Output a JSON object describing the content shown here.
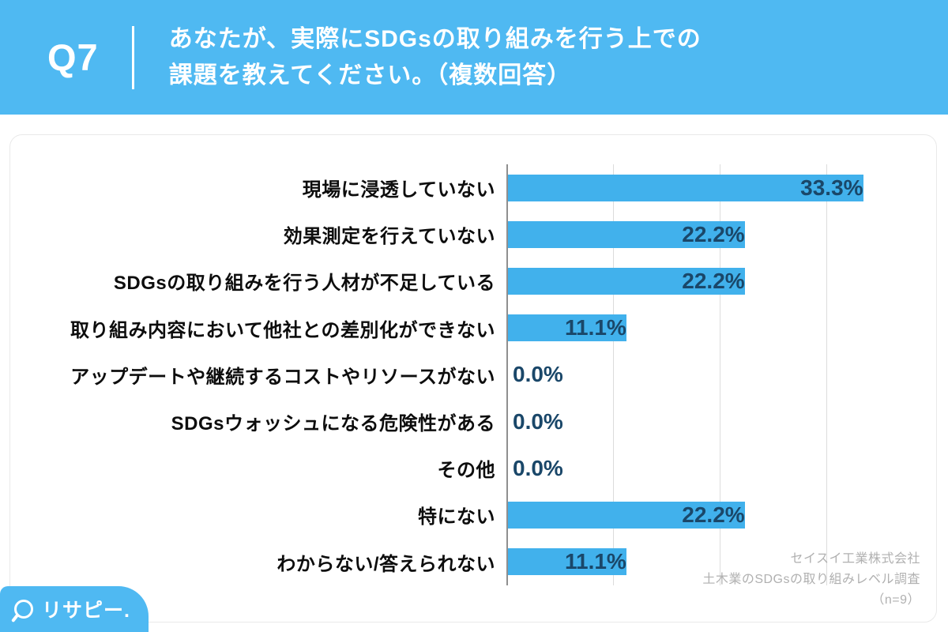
{
  "header": {
    "q_label": "Q7",
    "title_line1": "あなたが、実際にSDGsの取り組みを行う上での",
    "title_line2": "課題を教えてください。（複数回答）"
  },
  "chart_data": {
    "type": "bar",
    "orientation": "horizontal",
    "title": "あなたが、実際にSDGsの取り組みを行う上での課題を教えてください。（複数回答）",
    "categories": [
      "現場に浸透していない",
      "効果測定を行えていない",
      "SDGsの取り組みを行う人材が不足している",
      "取り組み内容において他社との差別化ができない",
      "アップデートや継続するコストやリソースがない",
      "SDGsウォッシュになる危険性がある",
      "その他",
      "特にない",
      "わからない/答えられない"
    ],
    "values": [
      33.3,
      22.2,
      22.2,
      11.1,
      0.0,
      0.0,
      0.0,
      22.2,
      11.1
    ],
    "value_labels": [
      "33.3%",
      "22.2%",
      "22.2%",
      "11.1%",
      "0.0%",
      "0.0%",
      "0.0%",
      "22.2%",
      "11.1%"
    ],
    "xlim": [
      0,
      40
    ],
    "grid_interval": 10,
    "grid_on": true,
    "legend": "none",
    "bar_color": "#41B1EC",
    "value_label_color": "#1A4769",
    "sample_size": "n=9"
  },
  "footer": {
    "source_lines": [
      "セイスイ工業株式会社",
      "土木業のSDGsの取り組みレベル調査",
      "（n=9）"
    ]
  },
  "logo": {
    "icon": "magnifier-icon",
    "text": "リサピー.",
    "accent_color": "#4FB9F2"
  }
}
